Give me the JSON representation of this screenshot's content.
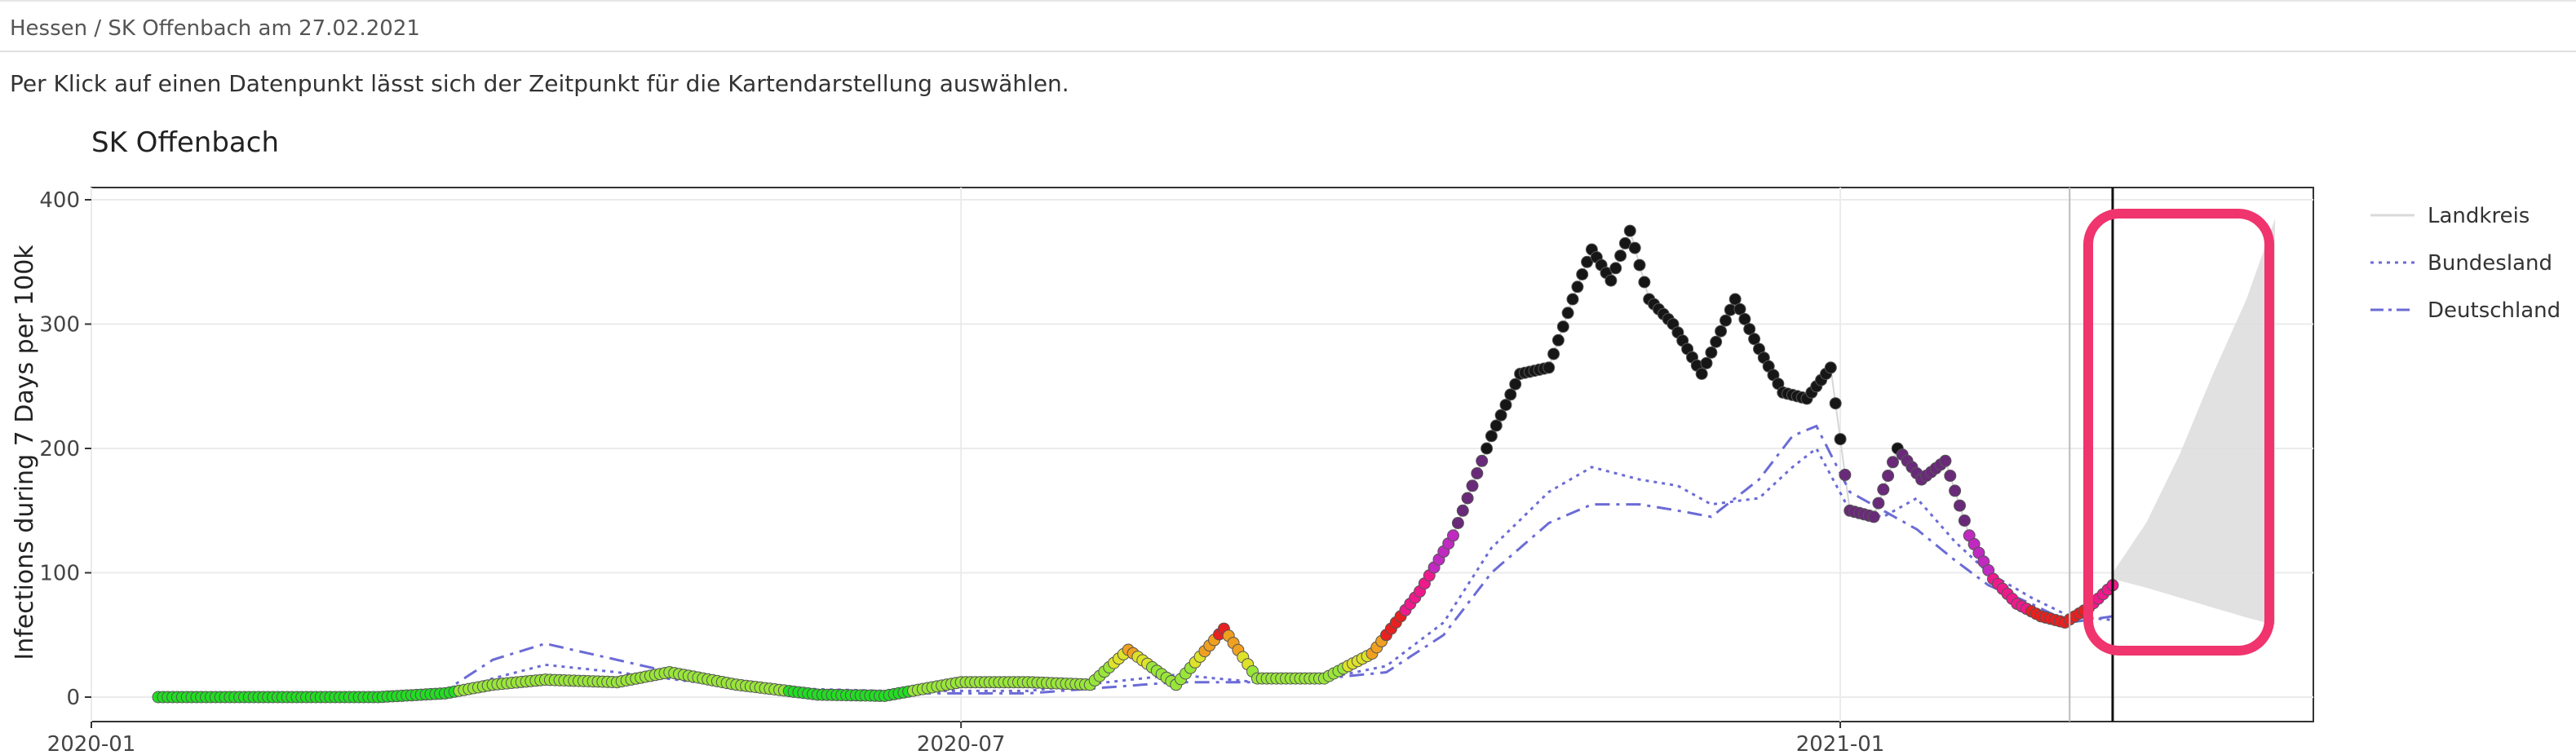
{
  "breadcrumb": "Hessen / SK Offenbach am 27.02.2021",
  "hint": "Per Klick auf einen Datenpunkt lässt sich der Zeitpunkt für die Kartendarstellung auswählen.",
  "chart_data": {
    "type": "scatter",
    "title": "SK Offenbach",
    "ylabel": "Infections during 7 Days per 100k",
    "xlabel": "",
    "ylim": [
      0,
      400
    ],
    "xlim": [
      "2020-01-01",
      "2021-04-10"
    ],
    "yticks": [
      0,
      100,
      200,
      300,
      400
    ],
    "xticks": [
      "2020-01",
      "2020-07",
      "2021-01"
    ],
    "grid": true,
    "legend_position": "right",
    "legend": [
      {
        "name": "Landkreis",
        "style": "solid",
        "color": "#d9d9d9"
      },
      {
        "name": "Bundesland",
        "style": "dotted",
        "color": "#6b6bd6"
      },
      {
        "name": "Deutschland",
        "style": "dashdot",
        "color": "#6b6bd6"
      }
    ],
    "vlines": [
      "2021-02-18",
      "2021-02-27"
    ],
    "series": [
      {
        "name": "Landkreis",
        "x": [
          "2020-01-15",
          "2020-02-01",
          "2020-03-01",
          "2020-03-15",
          "2020-03-25",
          "2020-04-05",
          "2020-04-20",
          "2020-05-01",
          "2020-05-15",
          "2020-06-01",
          "2020-06-15",
          "2020-07-01",
          "2020-07-15",
          "2020-07-28",
          "2020-08-05",
          "2020-08-15",
          "2020-08-25",
          "2020-09-01",
          "2020-09-15",
          "2020-09-25",
          "2020-10-05",
          "2020-10-12",
          "2020-10-20",
          "2020-10-26",
          "2020-11-01",
          "2020-11-06",
          "2020-11-10",
          "2020-11-14",
          "2020-11-18",
          "2020-11-22",
          "2020-11-27",
          "2020-12-03",
          "2020-12-10",
          "2020-12-15",
          "2020-12-20",
          "2020-12-25",
          "2020-12-30",
          "2021-01-03",
          "2021-01-08",
          "2021-01-13",
          "2021-01-18",
          "2021-01-23",
          "2021-01-28",
          "2021-02-02",
          "2021-02-07",
          "2021-02-12",
          "2021-02-17",
          "2021-02-22",
          "2021-02-27"
        ],
        "values": [
          0,
          0,
          0,
          3,
          10,
          14,
          12,
          20,
          10,
          2,
          1,
          12,
          12,
          10,
          38,
          10,
          55,
          15,
          15,
          35,
          85,
          130,
          210,
          260,
          265,
          320,
          360,
          335,
          375,
          320,
          300,
          260,
          320,
          280,
          245,
          240,
          265,
          150,
          145,
          200,
          175,
          190,
          130,
          95,
          75,
          65,
          60,
          72,
          90
        ]
      },
      {
        "name": "Bundesland",
        "x": [
          "2020-01-15",
          "2020-03-01",
          "2020-03-15",
          "2020-03-25",
          "2020-04-05",
          "2020-04-20",
          "2020-05-15",
          "2020-06-15",
          "2020-07-15",
          "2020-08-15",
          "2020-09-01",
          "2020-09-15",
          "2020-09-28",
          "2020-10-10",
          "2020-10-20",
          "2020-11-01",
          "2020-11-10",
          "2020-11-15",
          "2020-11-20",
          "2020-11-28",
          "2020-12-05",
          "2020-12-15",
          "2020-12-22",
          "2020-12-27",
          "2021-01-03",
          "2021-01-10",
          "2021-01-17",
          "2021-01-25",
          "2021-02-01",
          "2021-02-10",
          "2021-02-18",
          "2021-02-27"
        ],
        "values": [
          0,
          0,
          2,
          15,
          26,
          20,
          8,
          5,
          5,
          18,
          12,
          15,
          25,
          60,
          120,
          165,
          185,
          180,
          175,
          170,
          155,
          160,
          185,
          200,
          150,
          145,
          160,
          125,
          100,
          80,
          65,
          62
        ]
      },
      {
        "name": "Deutschland",
        "x": [
          "2020-01-15",
          "2020-03-01",
          "2020-03-15",
          "2020-03-25",
          "2020-04-05",
          "2020-04-20",
          "2020-05-15",
          "2020-06-15",
          "2020-07-15",
          "2020-08-15",
          "2020-09-01",
          "2020-09-15",
          "2020-09-28",
          "2020-10-10",
          "2020-10-20",
          "2020-11-01",
          "2020-11-10",
          "2020-11-20",
          "2020-11-28",
          "2020-12-05",
          "2020-12-15",
          "2020-12-22",
          "2020-12-27",
          "2021-01-03",
          "2021-01-10",
          "2021-01-17",
          "2021-01-25",
          "2021-02-01",
          "2021-02-10",
          "2021-02-18",
          "2021-02-27"
        ],
        "values": [
          0,
          0,
          5,
          30,
          43,
          30,
          8,
          3,
          3,
          12,
          12,
          15,
          20,
          50,
          100,
          140,
          155,
          155,
          150,
          145,
          175,
          210,
          218,
          165,
          150,
          135,
          110,
          90,
          75,
          60,
          65
        ]
      }
    ],
    "forecast": {
      "x": [
        "2021-02-27",
        "2021-03-06",
        "2021-03-13",
        "2021-03-20",
        "2021-03-27",
        "2021-04-02"
      ],
      "lower": [
        95,
        88,
        80,
        72,
        64,
        58
      ],
      "upper": [
        100,
        140,
        195,
        260,
        320,
        385
      ]
    }
  }
}
